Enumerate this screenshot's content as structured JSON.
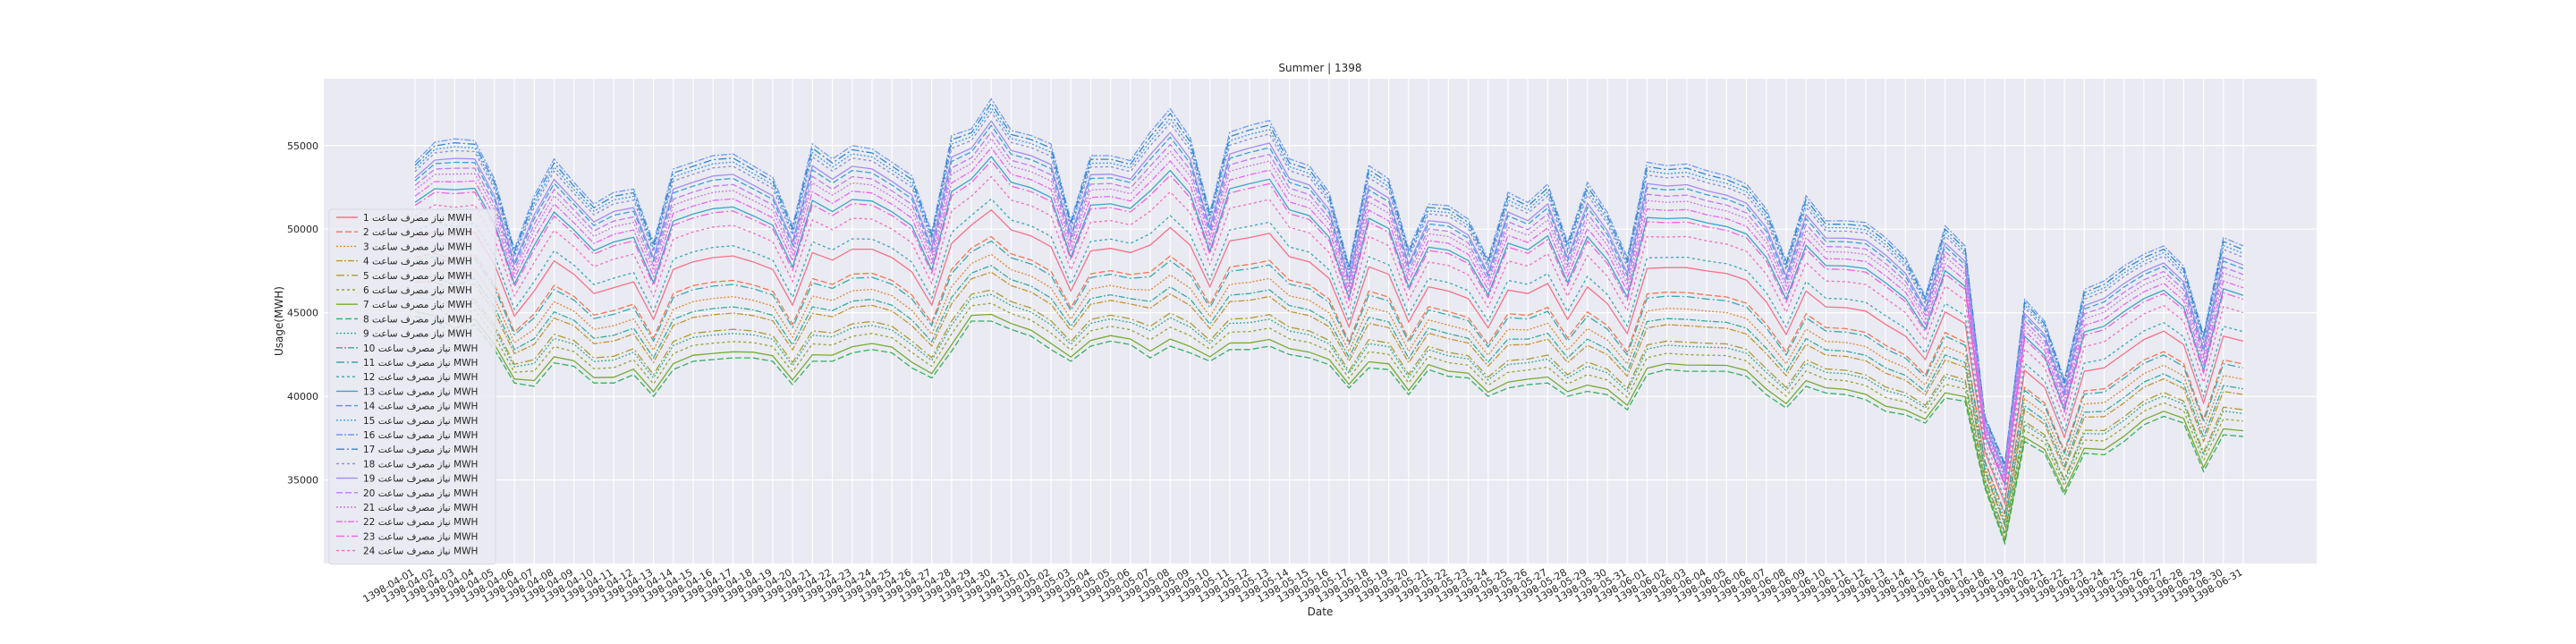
{
  "chart_data": {
    "type": "line",
    "title": "Summer | 1398",
    "xlabel": "Date",
    "ylabel": "Usage(MWH)",
    "ylim": [
      30000,
      59000
    ],
    "yticks": [
      35000,
      40000,
      45000,
      50000,
      55000
    ],
    "grid": true,
    "legend_position": "center-left",
    "x": [
      "1398-04-01",
      "1398-04-02",
      "1398-04-03",
      "1398-04-04",
      "1398-04-05",
      "1398-04-06",
      "1398-04-07",
      "1398-04-08",
      "1398-04-09",
      "1398-04-10",
      "1398-04-11",
      "1398-04-12",
      "1398-04-13",
      "1398-04-14",
      "1398-04-15",
      "1398-04-16",
      "1398-04-17",
      "1398-04-18",
      "1398-04-19",
      "1398-04-20",
      "1398-04-21",
      "1398-04-22",
      "1398-04-23",
      "1398-04-24",
      "1398-04-25",
      "1398-04-26",
      "1398-04-27",
      "1398-04-28",
      "1398-04-29",
      "1398-04-30",
      "1398-04-31",
      "1398-05-01",
      "1398-05-02",
      "1398-05-03",
      "1398-05-04",
      "1398-05-05",
      "1398-05-06",
      "1398-05-07",
      "1398-05-08",
      "1398-05-09",
      "1398-05-10",
      "1398-05-11",
      "1398-05-12",
      "1398-05-13",
      "1398-05-14",
      "1398-05-15",
      "1398-05-16",
      "1398-05-17",
      "1398-05-18",
      "1398-05-19",
      "1398-05-20",
      "1398-05-21",
      "1398-05-22",
      "1398-05-23",
      "1398-05-24",
      "1398-05-25",
      "1398-05-26",
      "1398-05-27",
      "1398-05-28",
      "1398-05-29",
      "1398-05-30",
      "1398-05-31",
      "1398-06-01",
      "1398-06-02",
      "1398-06-03",
      "1398-06-04",
      "1398-06-05",
      "1398-06-06",
      "1398-06-07",
      "1398-06-08",
      "1398-06-09",
      "1398-06-10",
      "1398-06-11",
      "1398-06-12",
      "1398-06-13",
      "1398-06-14",
      "1398-06-15",
      "1398-06-16",
      "1398-06-17",
      "1398-06-18",
      "1398-06-19",
      "1398-06-20",
      "1398-06-21",
      "1398-06-22",
      "1398-06-23",
      "1398-06-24",
      "1398-06-25",
      "1398-06-26",
      "1398-06-27",
      "1398-06-28",
      "1398-06-29",
      "1398-06-30",
      "1398-06-31"
    ],
    "top_envelope": [
      54000,
      55200,
      55400,
      55300,
      53000,
      48800,
      52000,
      54200,
      52800,
      51500,
      52200,
      52400,
      49200,
      53600,
      54000,
      54400,
      54500,
      53800,
      53100,
      50200,
      55100,
      54200,
      55000,
      54800,
      54000,
      53200,
      49800,
      55600,
      56000,
      57800,
      55900,
      55600,
      55100,
      50500,
      54400,
      54400,
      54100,
      55800,
      57200,
      55500,
      51000,
      55800,
      56200,
      56500,
      54200,
      53800,
      52200,
      47800,
      53800,
      53000,
      48800,
      51500,
      51400,
      50600,
      48200,
      52200,
      51600,
      52700,
      49200,
      52800,
      51000,
      48300,
      54000,
      53800,
      53900,
      53500,
      53200,
      52700,
      51200,
      48100,
      52000,
      50500,
      50500,
      50400,
      49500,
      48300,
      46000,
      50200,
      49000,
      38800,
      36000,
      45800,
      44500,
      41000,
      46400,
      46900,
      47800,
      48500,
      49000,
      47800,
      43700,
      49500,
      49000
    ],
    "bottom_envelope": [
      44800,
      44500,
      43700,
      44300,
      42800,
      40800,
      40600,
      42000,
      41800,
      40800,
      40800,
      41300,
      40000,
      41600,
      42100,
      42200,
      42300,
      42300,
      42100,
      40700,
      42100,
      42100,
      42600,
      42800,
      42600,
      41700,
      41100,
      42700,
      44500,
      44500,
      44000,
      43600,
      42800,
      42100,
      43000,
      43300,
      43100,
      42300,
      43000,
      42600,
      42100,
      42800,
      42800,
      43000,
      42500,
      42300,
      41900,
      40500,
      41700,
      41600,
      40100,
      41600,
      41200,
      41100,
      40000,
      40500,
      40700,
      40800,
      40000,
      40300,
      40100,
      39200,
      41300,
      41600,
      41500,
      41500,
      41500,
      41200,
      40100,
      39300,
      40600,
      40200,
      40100,
      39800,
      39100,
      38900,
      38400,
      39900,
      39700,
      34500,
      31200,
      37300,
      36600,
      34100,
      36600,
      36500,
      37300,
      38300,
      38800,
      38400,
      35500,
      37700,
      37600
    ],
    "series": [
      {
        "name": "نیاز مصرف ساعت ۱ MWH",
        "label": "نیاز مصرف ساعت 1 MWH",
        "color": "#f77189"
      },
      {
        "name": "نیاز مصرف ساعت ۲ MWH",
        "label": "نیاز مصرف ساعت 2 MWH",
        "color": "#f7754f"
      },
      {
        "name": "نیاز مصرف ساعت ۳ MWH",
        "label": "نیاز مصرف ساعت 3 MWH",
        "color": "#dd8a32"
      },
      {
        "name": "نیاز مصرف ساعت ۴ MWH",
        "label": "نیاز مصرف ساعت 4 MWH",
        "color": "#c39532"
      },
      {
        "name": "نیاز مصرف ساعت ۵ MWH",
        "label": "نیاز مصرف ساعت 5 MWH",
        "color": "#ad9c31"
      },
      {
        "name": "نیاز مصرف ساعت ۶ MWH",
        "label": "نیاز مصرف ساعت 6 MWH",
        "color": "#97a431"
      },
      {
        "name": "نیاز مصرف ساعت ۷ MWH",
        "label": "نیاز مصرف ساعت 7 MWH",
        "color": "#77ab31"
      },
      {
        "name": "نیاز مصرف ساعت ۸ MWH",
        "label": "نیاز مصرف ساعت 8 MWH",
        "color": "#32b165"
      },
      {
        "name": "نیاز مصرف ساعت ۹ MWH",
        "label": "نیاز مصرف ساعت 9 MWH",
        "color": "#34ae8d"
      },
      {
        "name": "نیاز مصرف ساعت ۱۰ MWH",
        "label": "نیاز مصرف ساعت 10 MWH",
        "color": "#35ac9e"
      },
      {
        "name": "نیاز مصرف ساعت ۱۱ MWH",
        "label": "نیاز مصرف ساعت 11 MWH",
        "color": "#36aaac"
      },
      {
        "name": "نیاز مصرف ساعت ۱۲ MWH",
        "label": "نیاز مصرف ساعت 12 MWH",
        "color": "#37a8b8"
      },
      {
        "name": "نیاز مصرف ساعت ۱۳ MWH",
        "label": "نیاز مصرف ساعت 13 MWH",
        "color": "#38a6c5"
      },
      {
        "name": "نیاز مصرف ساعت ۱۴ MWH",
        "label": "نیاز مصرف ساعت 14 MWH",
        "color": "#3aa3d5"
      },
      {
        "name": "نیاز مصرف ساعت ۱۵ MWH",
        "label": "نیاز مصرف ساعت 15 MWH",
        "color": "#3d9ee9"
      },
      {
        "name": "نیاز مصرف ساعت ۱۶ MWH",
        "label": "نیاز مصرف ساعت 16 MWH",
        "color": "#6e9bf4"
      },
      {
        "name": "نیاز مصرف ساعت ۱۷ MWH",
        "label": "نیاز مصرف ساعت 17 MWH",
        "color": "#3288c8"
      },
      {
        "name": "نیاز مصرف ساعت ۱۸ MWH",
        "label": "نیاز مصرف ساعت 18 MWH",
        "color": "#8b8cd9"
      },
      {
        "name": "نیاز مصرف ساعت ۱۹ MWH",
        "label": "نیاز مصرف ساعت 19 MWH",
        "color": "#a48cf4"
      },
      {
        "name": "نیاز مصرف ساعت ۲۰ MWH",
        "label": "نیاز مصرف ساعت 20 MWH",
        "color": "#c17bf4"
      },
      {
        "name": "نیاز مصرف ساعت ۲۱ MWH",
        "label": "نیاز مصرف ساعت 21 MWH",
        "color": "#cc7ad9"
      },
      {
        "name": "نیاز مصرف ساعت ۲۲ MWH",
        "label": "نیاز مصرف ساعت 22 MWH",
        "color": "#e866f4"
      },
      {
        "name": "نیاز مصرف ساعت ۲۳ MWH",
        "label": "نیاز مصرف ساعت 23 MWH",
        "color": "#f461dd"
      },
      {
        "name": "نیاز مصرف ساعت ۲۴ MWH",
        "label": "نیاز مصرف ساعت 24 MWH",
        "color": "#f56cbf"
      }
    ],
    "series_levels": [
      0.5,
      0.38,
      0.3,
      0.22,
      0.14,
      0.08,
      0.03,
      0.0,
      0.12,
      0.25,
      0.36,
      0.55,
      0.74,
      0.88,
      0.96,
      1.0,
      0.98,
      0.94,
      0.9,
      0.85,
      0.82,
      0.78,
      0.72,
      0.65
    ]
  }
}
